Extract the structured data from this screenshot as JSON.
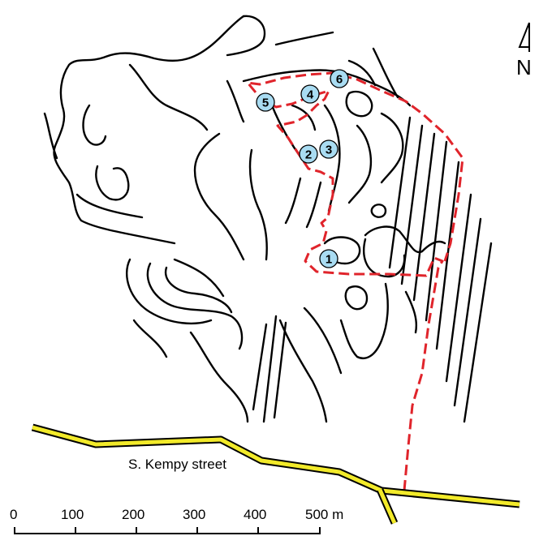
{
  "street": {
    "label": "S. Kempy street",
    "fill_color": "#f2ea2a"
  },
  "north_arrow": {
    "letter": "N"
  },
  "scale_bar": {
    "labels": [
      "0",
      "100",
      "200",
      "300",
      "400",
      "500 m"
    ]
  },
  "route": {
    "color": "#e0242b"
  },
  "markers": {
    "fill_color": "#a9dcf2",
    "items": [
      {
        "label": "1"
      },
      {
        "label": "2"
      },
      {
        "label": "3"
      },
      {
        "label": "4"
      },
      {
        "label": "5"
      },
      {
        "label": "6"
      }
    ]
  }
}
